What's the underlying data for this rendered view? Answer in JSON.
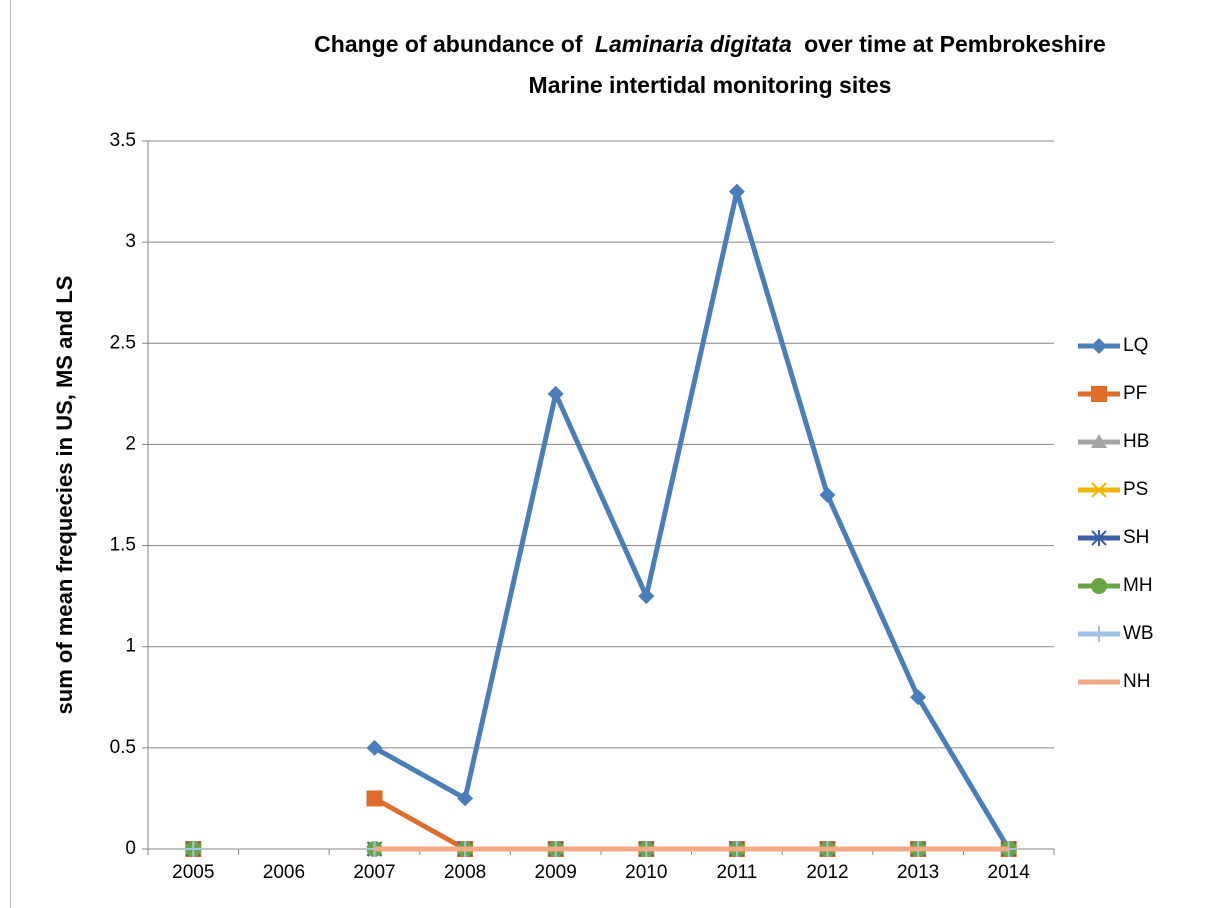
{
  "chart_data": {
    "type": "line",
    "title": {
      "line1": [
        "Change of abundance of",
        "Laminaria digitata",
        "over time at Pembrokeshire"
      ],
      "line2": "Marine intertidal monitoring sites"
    },
    "y_label": "sum of mean frequecies in US, MS and LS",
    "categories": [
      "2005",
      "2006",
      "2007",
      "2008",
      "2009",
      "2010",
      "2011",
      "2012",
      "2013",
      "2014"
    ],
    "series": [
      {
        "name": "LQ",
        "color": "#4a7ebb",
        "marker": "diamond",
        "values": [
          0,
          null,
          0.5,
          0.25,
          2.25,
          1.25,
          3.25,
          1.75,
          0.75,
          0
        ]
      },
      {
        "name": "PF",
        "color": "#e06c2a",
        "marker": "square",
        "values": [
          0,
          null,
          0.25,
          0,
          0,
          0,
          0,
          0,
          0,
          0
        ]
      },
      {
        "name": "HB",
        "color": "#a5a5a5",
        "marker": "triangle",
        "values": [
          0,
          null,
          0,
          0,
          0,
          0,
          0,
          0,
          0,
          0
        ]
      },
      {
        "name": "PS",
        "color": "#f2b600",
        "marker": "x",
        "values": [
          0,
          null,
          0,
          0,
          0,
          0,
          0,
          0,
          0,
          0
        ]
      },
      {
        "name": "SH",
        "color": "#3a5ea8",
        "marker": "star",
        "values": [
          0,
          null,
          0,
          0,
          0,
          0,
          0,
          0,
          0,
          0
        ]
      },
      {
        "name": "MH",
        "color": "#6aa544",
        "marker": "circle",
        "values": [
          0,
          null,
          0,
          0,
          0,
          0,
          0,
          0,
          0,
          0
        ]
      },
      {
        "name": "WB",
        "color": "#9ec3e6",
        "marker": "plus",
        "values": [
          0,
          null,
          0,
          0,
          0,
          0,
          0,
          0,
          0,
          0
        ]
      },
      {
        "name": "NH",
        "color": "#f1a987",
        "marker": "none",
        "values": [
          0,
          null,
          0,
          0,
          0,
          0,
          0,
          0,
          0,
          0
        ]
      }
    ],
    "ylim": [
      0,
      3.5
    ],
    "yticks": [
      0,
      0.5,
      1,
      1.5,
      2,
      2.5,
      3,
      3.5
    ],
    "grid": true,
    "legend": "right"
  }
}
